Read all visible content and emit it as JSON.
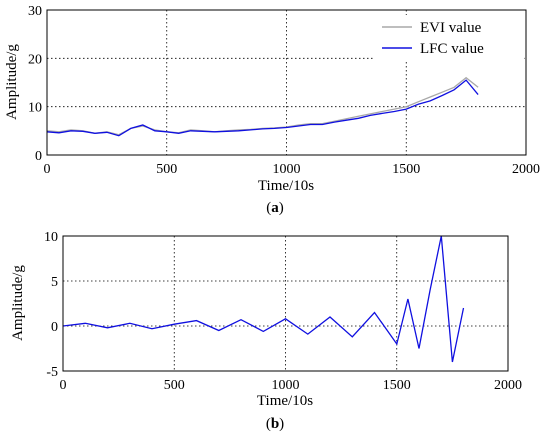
{
  "chart_data": [
    {
      "type": "line",
      "panel_label": "a",
      "xlabel": "Time/10s",
      "ylabel": "Amplitude/g",
      "xlim": [
        0,
        2000
      ],
      "ylim": [
        0,
        30
      ],
      "xticks": [
        "0",
        "500",
        "1000",
        "1500",
        "2000"
      ],
      "yticks": [
        "0",
        "10",
        "20",
        "30"
      ],
      "grid": true,
      "legend_position": "top-right",
      "series": [
        {
          "name": "EVI value",
          "color": "#a8a8a8",
          "x": [
            0,
            50,
            100,
            150,
            200,
            250,
            300,
            350,
            400,
            450,
            500,
            550,
            600,
            650,
            700,
            750,
            800,
            850,
            900,
            950,
            1000,
            1050,
            1100,
            1150,
            1200,
            1250,
            1300,
            1350,
            1400,
            1450,
            1500,
            1550,
            1600,
            1650,
            1700,
            1750,
            1800
          ],
          "y": [
            5.0,
            4.8,
            5.2,
            5.0,
            4.5,
            4.8,
            4.2,
            5.5,
            6.0,
            5.2,
            4.8,
            4.6,
            5.2,
            5.0,
            4.8,
            5.0,
            5.2,
            5.3,
            5.5,
            5.6,
            5.8,
            6.2,
            6.5,
            6.5,
            7.0,
            7.5,
            8.0,
            8.5,
            9.0,
            9.5,
            10.0,
            11.0,
            12.0,
            13.0,
            14.0,
            16.0,
            14.0
          ]
        },
        {
          "name": "LFC value",
          "color": "#1010e0",
          "x": [
            0,
            50,
            100,
            150,
            200,
            250,
            300,
            350,
            400,
            450,
            500,
            550,
            600,
            650,
            700,
            750,
            800,
            850,
            900,
            950,
            1000,
            1050,
            1100,
            1150,
            1200,
            1250,
            1300,
            1350,
            1400,
            1450,
            1500,
            1550,
            1600,
            1650,
            1700,
            1750,
            1800
          ],
          "y": [
            4.8,
            4.6,
            5.0,
            4.9,
            4.5,
            4.7,
            4.0,
            5.5,
            6.2,
            5.0,
            4.8,
            4.5,
            5.0,
            4.9,
            4.8,
            4.9,
            5.0,
            5.2,
            5.4,
            5.5,
            5.7,
            6.0,
            6.3,
            6.3,
            6.8,
            7.2,
            7.6,
            8.2,
            8.6,
            9.0,
            9.5,
            10.5,
            11.2,
            12.3,
            13.5,
            15.5,
            12.5
          ]
        }
      ]
    },
    {
      "type": "line",
      "panel_label": "b",
      "xlabel": "Time/10s",
      "ylabel": "Amplitude/g",
      "xlim": [
        0,
        2000
      ],
      "ylim": [
        -5,
        10
      ],
      "xticks": [
        "0",
        "500",
        "1000",
        "1500",
        "2000"
      ],
      "yticks": [
        "-5",
        "0",
        "5",
        "10"
      ],
      "grid": true,
      "series": [
        {
          "color": "#1010e0",
          "x": [
            0,
            100,
            200,
            300,
            400,
            500,
            600,
            700,
            800,
            900,
            1000,
            1100,
            1200,
            1300,
            1400,
            1500,
            1550,
            1600,
            1650,
            1700,
            1750,
            1800
          ],
          "y": [
            0.0,
            0.3,
            -0.2,
            0.3,
            -0.3,
            0.2,
            0.6,
            -0.5,
            0.7,
            -0.6,
            0.8,
            -0.9,
            1.0,
            -1.2,
            1.5,
            -2.0,
            3.0,
            -2.5,
            4.0,
            10.0,
            -4.0,
            2.0
          ]
        }
      ]
    }
  ]
}
